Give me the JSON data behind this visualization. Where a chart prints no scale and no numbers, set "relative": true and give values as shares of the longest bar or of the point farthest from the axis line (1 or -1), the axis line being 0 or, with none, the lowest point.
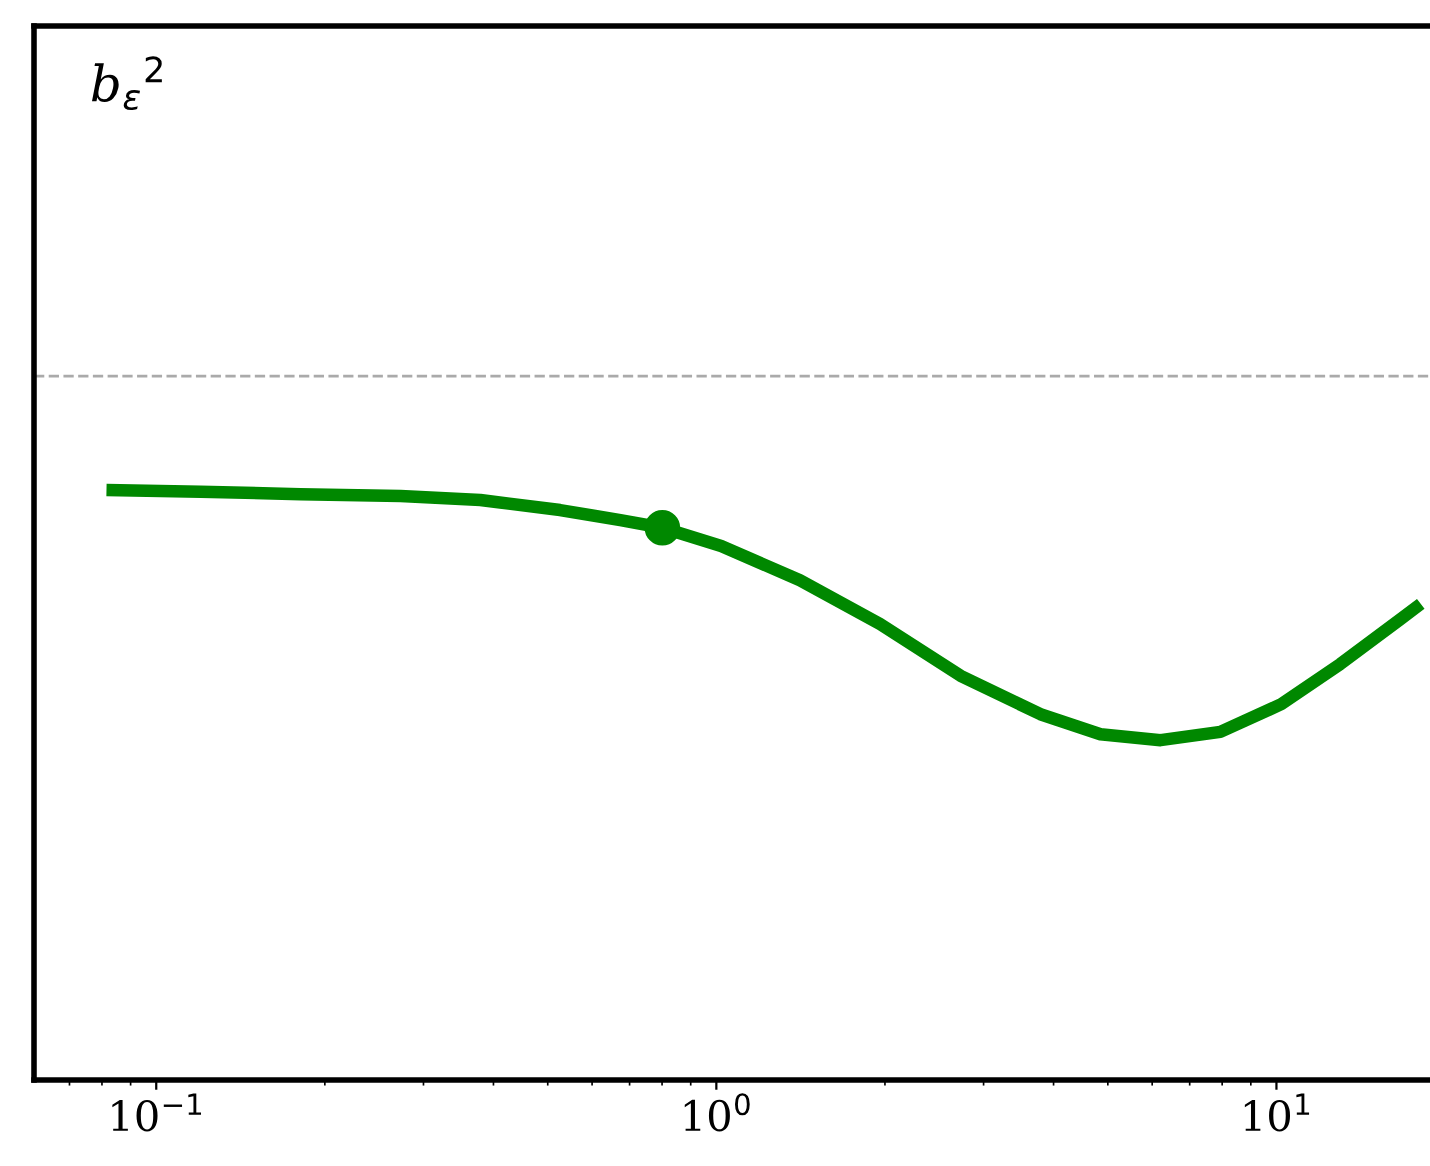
{
  "chart_data": {
    "type": "line",
    "relative": true,
    "log": "x",
    "annotations": [
      "b$_{ε}$$^{2}$"
    ],
    "xlim": [
      0.0605,
      18.8
    ],
    "xticks": [
      {
        "value": 0.1,
        "label": "10$^{−1}$"
      },
      {
        "value": 1,
        "label": "10$^{0}$"
      },
      {
        "value": 10,
        "label": "10$^{1}$"
      }
    ],
    "tick_labels": "x",
    "series": [
      {
        "color": "#008800",
        "x": [
          0.0815,
          0.12,
          0.181,
          0.273,
          0.379,
          0.526,
          0.674,
          0.801,
          1.02,
          1.41,
          1.96,
          2.73,
          3.79,
          4.85,
          6.21,
          7.94,
          10.2,
          13.0,
          16.6,
          18.1
        ],
        "values": [
          1.0,
          0.997,
          0.993,
          0.99,
          0.983,
          0.966,
          0.949,
          0.936,
          0.905,
          0.847,
          0.773,
          0.685,
          0.62,
          0.586,
          0.576,
          0.59,
          0.637,
          0.705,
          0.78,
          0.807
        ]
      },
      {
        "type": "scatter",
        "color": "#008800",
        "marker": "circle",
        "x": [
          0.801
        ],
        "values": [
          0.936
        ]
      }
    ],
    "ref_lines": [
      {
        "axis": "y",
        "value": 1.193,
        "color": "#aaaaaa",
        "line_style": "dashed"
      }
    ]
  }
}
